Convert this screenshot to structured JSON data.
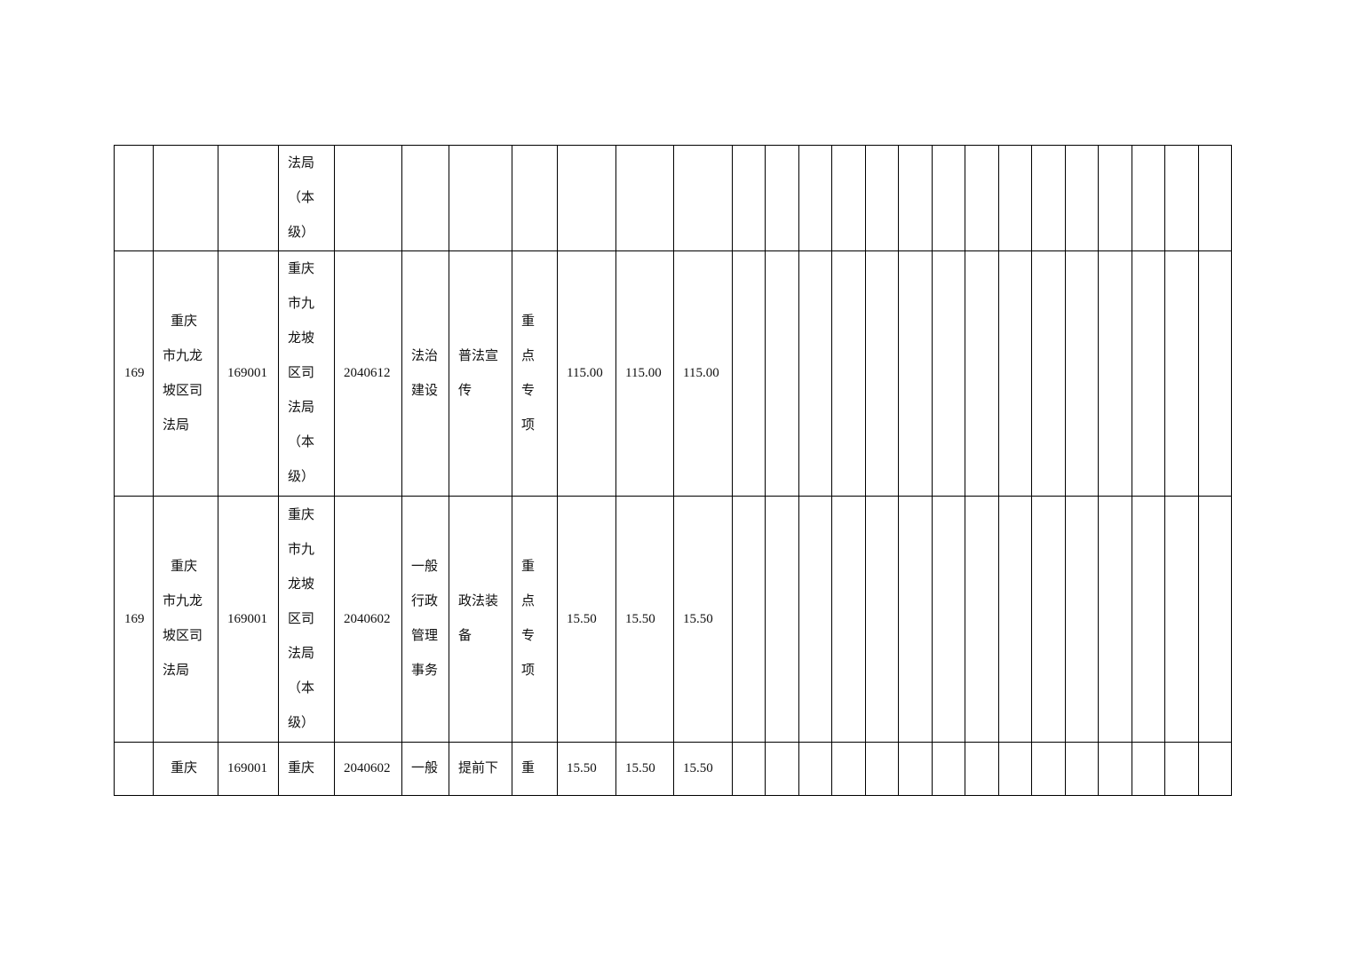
{
  "table": {
    "column_count": 26,
    "rows": [
      {
        "cells": [
          "",
          "",
          "",
          "法局\n（本\n级）",
          "",
          "",
          "",
          "",
          "",
          "",
          ""
        ]
      },
      {
        "cells": [
          "169",
          "重庆\n市九龙\n坡区司\n法局",
          "169001",
          "重庆\n市九\n龙坡\n区司\n法局\n（本\n级）",
          "2040612",
          "法治\n建设",
          "普法宣\n传",
          "重\n点\n专\n项",
          "115.00",
          "115.00",
          "115.00"
        ]
      },
      {
        "cells": [
          "169",
          "重庆\n市九龙\n坡区司\n法局",
          "169001",
          "重庆\n市九\n龙坡\n区司\n法局\n（本\n级）",
          "2040602",
          "一般\n行政\n管理\n事务",
          "政法装\n备",
          "重\n点\n专\n项",
          "15.50",
          "15.50",
          "15.50"
        ]
      },
      {
        "cells": [
          "",
          "重庆",
          "169001",
          "重庆",
          "2040602",
          "一般",
          "提前下",
          "重",
          "15.50",
          "15.50",
          "15.50"
        ]
      }
    ]
  }
}
